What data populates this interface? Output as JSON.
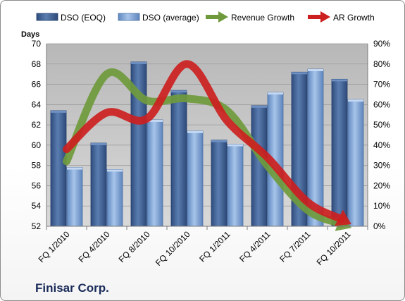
{
  "company_label": "Finisar Corp.",
  "chart_data": {
    "type": "bar",
    "title": "",
    "ylabel": "Days",
    "ylim": [
      52,
      70
    ],
    "y_ticks": [
      52,
      54,
      56,
      58,
      60,
      62,
      64,
      66,
      68,
      70
    ],
    "y2_ticks": [
      "0%",
      "10%",
      "20%",
      "30%",
      "40%",
      "50%",
      "60%",
      "70%",
      "80%",
      "90%"
    ],
    "y2lim": [
      0,
      90
    ],
    "grid": true,
    "legend_position": "top",
    "categories": [
      "FQ 1/2010",
      "FQ 4/2010",
      "FQ 8/2010",
      "FQ 10/2010",
      "FQ 1/2011",
      "FQ 4/2011",
      "FQ 7/2011",
      "FQ 10/2011"
    ],
    "series": [
      {
        "name": "DSO (EOQ)",
        "type": "bar",
        "axis": "left",
        "color": "#4a6a9c",
        "values": [
          63.4,
          60.2,
          68.2,
          65.4,
          60.5,
          63.9,
          67.2,
          66.5
        ]
      },
      {
        "name": "DSO (average)",
        "type": "bar",
        "axis": "left",
        "color": "#7ea3d6",
        "values": [
          57.8,
          57.6,
          62.5,
          61.4,
          60.1,
          65.2,
          67.5,
          64.5
        ]
      },
      {
        "name": "Revenue Growth",
        "type": "line",
        "axis": "right",
        "color": "#6f9a3c",
        "values": [
          32,
          75,
          62,
          63,
          57,
          30,
          8,
          0
        ]
      },
      {
        "name": "AR Growth",
        "type": "line",
        "axis": "right",
        "color": "#cc1f1f",
        "values": [
          38,
          56,
          53,
          80,
          52,
          34,
          12,
          2
        ]
      }
    ]
  }
}
